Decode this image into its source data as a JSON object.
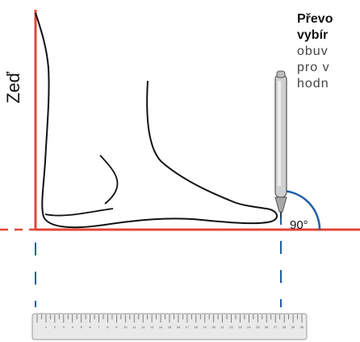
{
  "diagram": {
    "wall_label": "Zeď",
    "angle_label": "90°",
    "text_lines": {
      "bold_1": "Převo",
      "bold_2": "vybír",
      "line_3": "obuv",
      "line_4": "pro v",
      "line_5": "hodn"
    },
    "ruler_ticks": [
      "1",
      "2",
      "3",
      "4",
      "5",
      "6",
      "7",
      "8",
      "9",
      "10",
      "11",
      "12",
      "13",
      "14",
      "15",
      "16",
      "17",
      "18",
      "19",
      "20",
      "21",
      "22",
      "23",
      "24",
      "25",
      "26",
      "27",
      "28",
      "29",
      "30"
    ]
  },
  "colors": {
    "wall_line": "#e2463a",
    "floor_line": "#e2463a",
    "dashed_guides": "#1f5fa8",
    "angle_arc": "#1f5fa8",
    "pen_body": "#cfcfcf",
    "ruler_face": "#e9e9e9"
  },
  "icons": {
    "pen": "pen-icon",
    "ruler": "ruler-icon"
  }
}
